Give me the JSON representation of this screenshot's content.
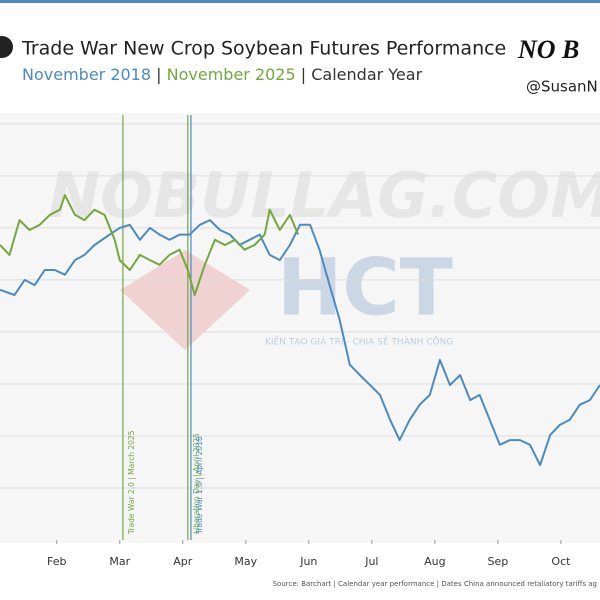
{
  "chart_data": {
    "type": "line",
    "title": "Trade War New Crop Soybean Futures Performance",
    "separator": "|",
    "subtitle_suffix": "Calendar Year",
    "brand": "NO B",
    "handle": "@SusanN",
    "watermark": "NOBULLAG.COM",
    "watermark_logo": "HCT",
    "watermark_tagline": "KIẾN TẠO GIÁ TRỊ - CHIA SẺ THÀNH CÔNG",
    "source": "Source: Barchart | Calendar year performance | Dates China announced retaliatory tariffs ag",
    "xlim": [
      0.1,
      9.62
    ],
    "xticks": [
      {
        "value": 1,
        "label": "Feb"
      },
      {
        "value": 2,
        "label": "Mar"
      },
      {
        "value": 3,
        "label": "Apr"
      },
      {
        "value": 4,
        "label": "May"
      },
      {
        "value": 5,
        "label": "Jun"
      },
      {
        "value": 6,
        "label": "Jul"
      },
      {
        "value": 7,
        "label": "Aug"
      },
      {
        "value": 8,
        "label": "Sep"
      },
      {
        "value": 9,
        "label": "Oct"
      }
    ],
    "ylim": [
      0,
      8.17
    ],
    "yticks": [
      1,
      2,
      3,
      4,
      5,
      6,
      7,
      8
    ],
    "grid": true,
    "annotations": [
      {
        "x": 2.05,
        "text": "Trade War 2.0 | March 2025",
        "color": "#72a83e"
      },
      {
        "x": 3.08,
        "text": "Liberation Day | April 2025",
        "color": "#72a83e"
      },
      {
        "x": 3.13,
        "text": "Trade War 1.0 | April 2018",
        "color": "#4a8bc4"
      }
    ],
    "series": [
      {
        "name": "November 2018",
        "color": "#4a8bc4",
        "x": [
          0.1,
          0.33,
          0.49,
          0.65,
          0.81,
          0.97,
          1.13,
          1.29,
          1.44,
          1.6,
          1.84,
          2.0,
          2.16,
          2.32,
          2.48,
          2.63,
          2.79,
          2.95,
          3.11,
          3.27,
          3.43,
          3.59,
          3.75,
          3.9,
          4.06,
          4.22,
          4.38,
          4.54,
          4.7,
          4.86,
          5.02,
          5.17,
          5.33,
          5.49,
          5.65,
          5.81,
          5.97,
          6.13,
          6.29,
          6.44,
          6.6,
          6.76,
          6.92,
          7.08,
          7.24,
          7.4,
          7.56,
          7.71,
          7.87,
          8.03,
          8.19,
          8.35,
          8.51,
          8.67,
          8.83,
          8.98,
          9.14,
          9.3,
          9.46,
          9.62
        ],
        "values": [
          4.81,
          4.71,
          5.0,
          4.9,
          5.19,
          5.19,
          5.1,
          5.38,
          5.48,
          5.67,
          5.87,
          6.0,
          6.06,
          5.77,
          6.0,
          5.87,
          5.77,
          5.87,
          5.87,
          6.06,
          6.15,
          5.96,
          5.87,
          5.67,
          5.77,
          5.87,
          5.48,
          5.38,
          5.67,
          6.06,
          6.06,
          5.58,
          4.9,
          4.23,
          3.37,
          3.17,
          2.98,
          2.79,
          2.31,
          1.92,
          2.31,
          2.6,
          2.79,
          3.46,
          2.98,
          3.17,
          2.69,
          2.79,
          2.31,
          1.83,
          1.92,
          1.92,
          1.83,
          1.44,
          2.02,
          2.21,
          2.31,
          2.6,
          2.69,
          2.98
        ]
      },
      {
        "name": "November 2025",
        "color": "#72a83e",
        "x": [
          0.1,
          0.25,
          0.41,
          0.57,
          0.73,
          0.89,
          1.05,
          1.13,
          1.29,
          1.44,
          1.6,
          1.76,
          1.92,
          2.0,
          2.16,
          2.32,
          2.48,
          2.63,
          2.79,
          2.95,
          3.08,
          3.19,
          3.35,
          3.51,
          3.67,
          3.83,
          3.98,
          4.14,
          4.3,
          4.38,
          4.54,
          4.7,
          4.83
        ],
        "values": [
          5.67,
          5.48,
          6.15,
          5.96,
          6.06,
          6.25,
          6.35,
          6.63,
          6.25,
          6.15,
          6.35,
          6.25,
          5.77,
          5.38,
          5.19,
          5.48,
          5.38,
          5.29,
          5.48,
          5.58,
          5.19,
          4.71,
          5.29,
          5.77,
          5.67,
          5.77,
          5.58,
          5.67,
          5.87,
          6.35,
          5.96,
          6.25,
          5.87
        ]
      }
    ]
  }
}
